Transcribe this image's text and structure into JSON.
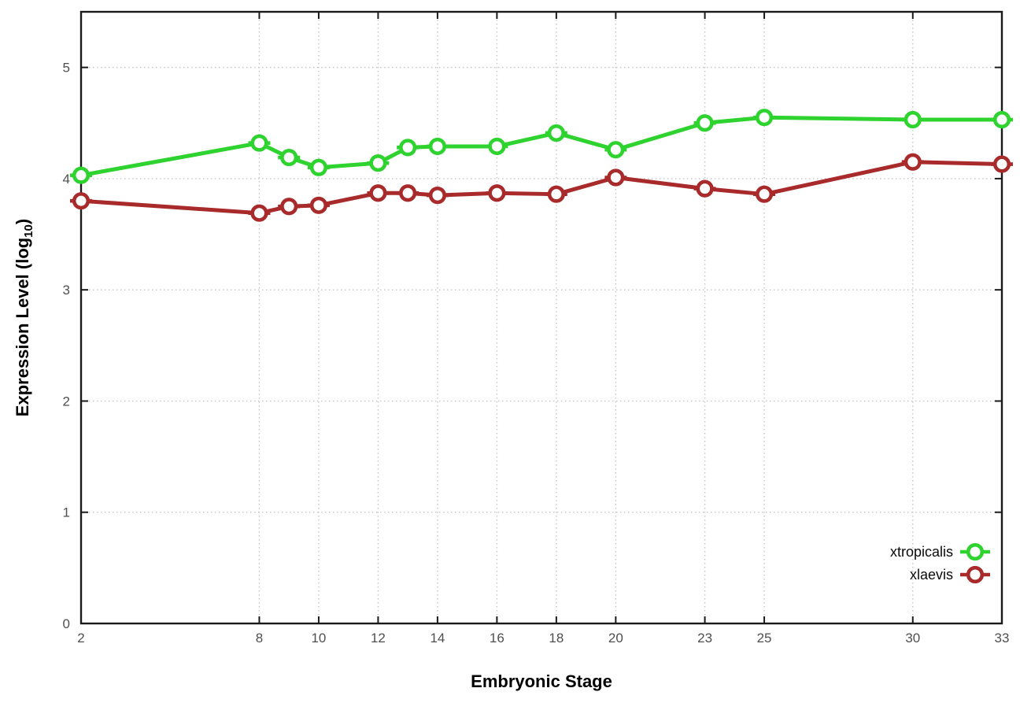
{
  "chart_data": {
    "type": "line",
    "title": "",
    "xlabel": "Embryonic Stage",
    "ylabel": "Expression Level (log10)",
    "ylabel_parts": {
      "main": "Expression Level (log",
      "sub": "10",
      "close": ")"
    },
    "xlim": [
      2,
      33
    ],
    "ylim": [
      0,
      5.5
    ],
    "x_ticks": [
      2,
      8,
      10,
      12,
      14,
      16,
      18,
      20,
      23,
      25,
      30,
      33
    ],
    "y_ticks": [
      0,
      1,
      2,
      3,
      4,
      5
    ],
    "grid": true,
    "legend_position": "inside-bottom-right",
    "x": [
      2,
      8,
      9,
      10,
      12,
      13,
      14,
      16,
      18,
      20,
      23,
      25,
      30,
      33
    ],
    "series": [
      {
        "name": "xtropicalis",
        "color": "#2fd32f",
        "values": [
          4.03,
          4.32,
          4.19,
          4.1,
          4.14,
          4.28,
          4.29,
          4.29,
          4.41,
          4.26,
          4.5,
          4.55,
          4.53,
          4.53
        ]
      },
      {
        "name": "xlaevis",
        "color": "#a82a2a",
        "values": [
          3.8,
          3.69,
          3.75,
          3.76,
          3.87,
          3.87,
          3.85,
          3.87,
          3.86,
          4.01,
          3.91,
          3.86,
          4.15,
          4.13
        ]
      }
    ],
    "style": {
      "border_color": "#1a1a1a",
      "grid_color": "#c6c6c6",
      "tick_label_color": "#4f4f4f",
      "background": "#ffffff",
      "marker": "open-circle-with-hbar"
    }
  }
}
